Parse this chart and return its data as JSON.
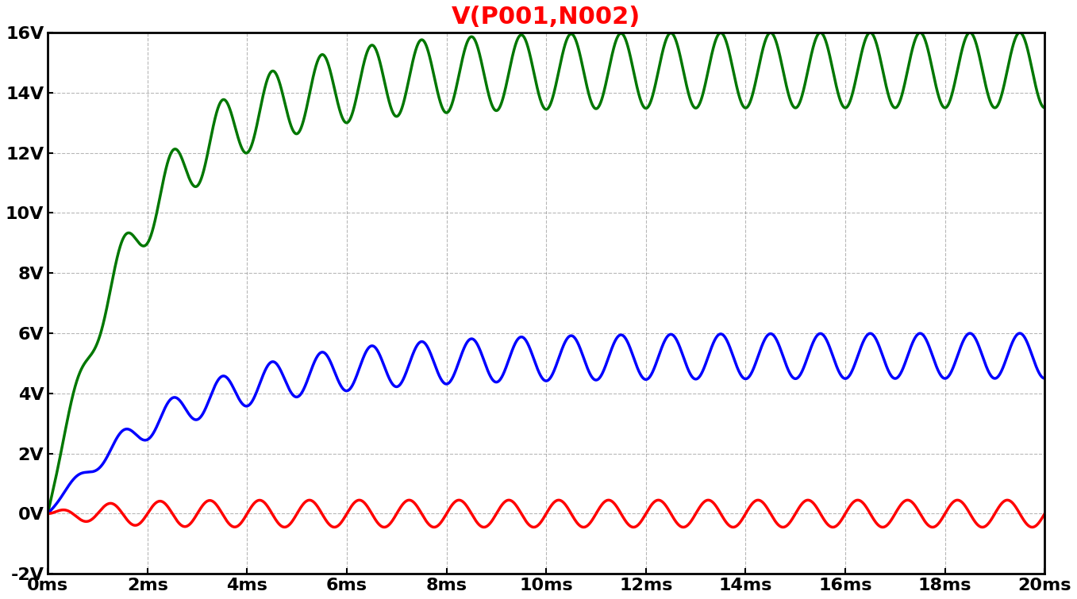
{
  "title": "V(P001,N002)",
  "title_color": "#ff0000",
  "title_fontsize": 22,
  "background_color": "#ffffff",
  "plot_bg_color": "#ffffff",
  "grid_color": "#888888",
  "xlim": [
    0,
    0.02
  ],
  "ylim": [
    -2,
    16
  ],
  "yticks": [
    -2,
    0,
    2,
    4,
    6,
    8,
    10,
    12,
    14,
    16
  ],
  "xticks": [
    0,
    0.002,
    0.004,
    0.006,
    0.008,
    0.01,
    0.012,
    0.014,
    0.016,
    0.018,
    0.02
  ],
  "xtick_labels": [
    "0ms",
    "2ms",
    "4ms",
    "6ms",
    "8ms",
    "10ms",
    "12ms",
    "14ms",
    "16ms",
    "18ms",
    "20ms"
  ],
  "ytick_labels": [
    "-2V",
    "0V",
    "2V",
    "4V",
    "6V",
    "8V",
    "10V",
    "12V",
    "14V",
    "16V"
  ],
  "green_color": "#007700",
  "blue_color": "#0000ff",
  "red_color": "#ff0000",
  "line_width": 2.5,
  "freq": 1000,
  "green_dc_final": 14.75,
  "green_amp_final": 1.25,
  "green_tau": 0.00045,
  "blue_dc_final": 5.25,
  "blue_amp_final": 0.75,
  "blue_tau": 0.00055,
  "red_dc_final": 0.0,
  "red_amp_final": 0.45,
  "red_tau": 0.00035
}
